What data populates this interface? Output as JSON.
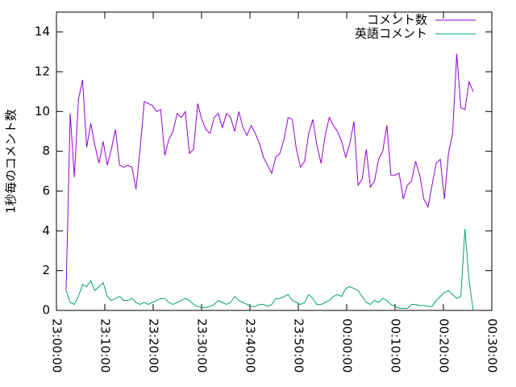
{
  "chart_data": {
    "type": "line",
    "ylabel": "1秒毎のコメント数",
    "x": [
      2,
      2.85,
      3.7,
      4.55,
      5.4,
      6.25,
      7.1,
      7.95,
      8.8,
      9.65,
      10.5,
      11.35,
      12.2,
      13.05,
      13.9,
      14.75,
      15.6,
      16.45,
      17.3,
      18.15,
      19,
      19.85,
      20.7,
      21.55,
      22.4,
      23.25,
      24.1,
      24.95,
      25.8,
      26.65,
      27.5,
      28.35,
      29.2,
      30.05,
      30.9,
      31.75,
      32.6,
      33.45,
      34.3,
      35.15,
      36,
      36.85,
      37.7,
      38.55,
      39.4,
      40.25,
      41.1,
      41.95,
      42.8,
      43.65,
      44.5,
      45.35,
      46.2,
      47.05,
      47.9,
      48.75,
      49.6,
      50.45,
      51.3,
      52.15,
      53,
      53.85,
      54.7,
      55.55,
      56.4,
      57.25,
      58.1,
      58.95,
      59.8,
      60.65,
      61.5,
      62.35,
      63.2,
      64.05,
      64.9,
      65.75,
      66.6,
      67.45,
      68.3,
      69.15,
      70,
      70.85,
      71.7,
      72.55,
      73.4,
      74.25,
      75.1,
      75.95,
      76.8,
      77.65,
      78.5,
      79.35,
      80.2,
      81.05,
      81.9,
      82.75,
      83.6,
      84.45,
      85.3,
      86.15
    ],
    "series": [
      {
        "name": "コメント数",
        "color": "#9400d3",
        "values": [
          1.0,
          9.9,
          6.7,
          10.6,
          11.6,
          8.2,
          9.4,
          8.3,
          7.4,
          8.5,
          7.3,
          8.1,
          9.1,
          7.3,
          7.2,
          7.3,
          7.2,
          6.1,
          8.1,
          10.5,
          10.4,
          10.3,
          10.0,
          10.1,
          7.8,
          8.6,
          9.0,
          9.9,
          9.7,
          10.0,
          7.9,
          8.1,
          10.4,
          9.6,
          9.1,
          8.9,
          9.7,
          9.9,
          9.2,
          9.9,
          9.7,
          9.0,
          10.0,
          9.2,
          8.8,
          9.3,
          8.9,
          8.4,
          7.7,
          7.3,
          6.9,
          7.7,
          7.9,
          8.6,
          9.7,
          9.6,
          8.1,
          7.2,
          7.5,
          8.9,
          9.6,
          8.3,
          7.4,
          8.8,
          9.7,
          9.3,
          9.0,
          8.5,
          7.7,
          8.4,
          9.5,
          6.3,
          6.6,
          8.1,
          6.2,
          6.5,
          7.6,
          8.0,
          9.3,
          6.8,
          6.8,
          6.9,
          5.6,
          6.3,
          6.5,
          7.5,
          6.8,
          5.6,
          5.2,
          6.3,
          7.4,
          7.6,
          5.6,
          7.9,
          8.9,
          12.9,
          10.2,
          10.1,
          11.5,
          11.0
        ]
      },
      {
        "name": "英語コメント",
        "color": "#009e73",
        "values": [
          1.0,
          0.4,
          0.3,
          0.7,
          1.3,
          1.2,
          1.5,
          1.0,
          1.2,
          1.4,
          0.7,
          0.5,
          0.6,
          0.7,
          0.5,
          0.5,
          0.6,
          0.4,
          0.3,
          0.4,
          0.3,
          0.4,
          0.5,
          0.6,
          0.6,
          0.4,
          0.3,
          0.4,
          0.5,
          0.6,
          0.5,
          0.3,
          0.2,
          0.15,
          0.15,
          0.2,
          0.3,
          0.5,
          0.4,
          0.3,
          0.4,
          0.7,
          0.5,
          0.4,
          0.3,
          0.2,
          0.2,
          0.3,
          0.3,
          0.2,
          0.3,
          0.6,
          0.6,
          0.7,
          0.8,
          0.5,
          0.4,
          0.3,
          0.4,
          0.8,
          0.6,
          0.3,
          0.3,
          0.4,
          0.5,
          0.7,
          0.8,
          0.7,
          1.1,
          1.2,
          1.1,
          1.0,
          0.7,
          0.4,
          0.3,
          0.5,
          0.4,
          0.6,
          0.5,
          0.3,
          0.2,
          0.1,
          0.1,
          0.1,
          0.3,
          0.3,
          0.25,
          0.25,
          0.2,
          0.2,
          0.5,
          0.7,
          0.9,
          1.0,
          0.8,
          0.6,
          0.7,
          4.1,
          1.5,
          0.0
        ]
      }
    ],
    "xlim": [
      0,
      90
    ],
    "xticks": [
      {
        "value": 0,
        "label": "23:00:00"
      },
      {
        "value": 10,
        "label": "23:10:00"
      },
      {
        "value": 20,
        "label": "23:20:00"
      },
      {
        "value": 30,
        "label": "23:30:00"
      },
      {
        "value": 40,
        "label": "23:40:00"
      },
      {
        "value": 50,
        "label": "23:50:00"
      },
      {
        "value": 60,
        "label": "00:00:00"
      },
      {
        "value": 70,
        "label": "00:10:00"
      },
      {
        "value": 80,
        "label": "00:20:00"
      },
      {
        "value": 90,
        "label": "00:30:00"
      }
    ],
    "ylim": [
      0,
      15
    ],
    "yticks": [
      0,
      2,
      4,
      6,
      8,
      10,
      12,
      14
    ],
    "legend": "top-right",
    "grid": false
  }
}
